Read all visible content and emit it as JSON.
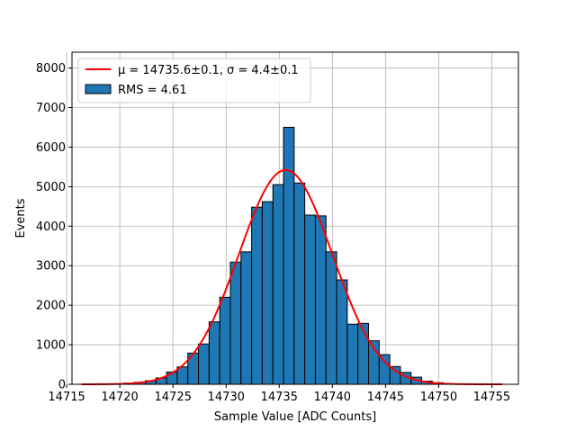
{
  "chart_data": {
    "type": "bar",
    "xlabel": "Sample Value [ADC Counts]",
    "ylabel": "Events",
    "xlim": [
      14715.5,
      14757.5
    ],
    "ylim": [
      0,
      8400
    ],
    "xticks": [
      14715,
      14720,
      14725,
      14730,
      14735,
      14740,
      14745,
      14750,
      14755
    ],
    "yticks": [
      0,
      1000,
      2000,
      3000,
      4000,
      5000,
      6000,
      7000,
      8000
    ],
    "grid": true,
    "legend_position": "top-left",
    "histogram": {
      "name": "RMS = 4.61",
      "color": "#1f77b4",
      "edge_color": "#000000",
      "bin_edges": [
        14716.4,
        14717.4,
        14718.4,
        14719.4,
        14720.4,
        14721.4,
        14722.4,
        14723.4,
        14724.4,
        14725.4,
        14726.4,
        14727.4,
        14728.4,
        14729.4,
        14730.4,
        14731.4,
        14732.4,
        14733.4,
        14734.4,
        14735.4,
        14736.4,
        14737.4,
        14738.4,
        14739.4,
        14740.4,
        14741.4,
        14742.4,
        14743.4,
        14744.4,
        14745.4,
        14746.4,
        14747.4,
        14748.4,
        14749.4,
        14750.4,
        14751.4,
        14752.4,
        14753.4,
        14754.4,
        14755.4
      ],
      "counts": [
        0,
        0,
        5,
        15,
        30,
        50,
        90,
        160,
        310,
        440,
        790,
        1020,
        1580,
        2200,
        3090,
        3350,
        4480,
        4620,
        5050,
        6500,
        5090,
        4280,
        4260,
        3350,
        2640,
        1520,
        1540,
        1100,
        750,
        450,
        300,
        180,
        80,
        40,
        15,
        5,
        0,
        0,
        0
      ]
    },
    "fit": {
      "name": "μ = 14735.6±0.1, σ = 4.4±0.1",
      "color": "#ff0000",
      "mu": 14735.6,
      "sigma": 4.4,
      "amplitude": 5420,
      "x_range": [
        14716.4,
        14756.0
      ]
    }
  }
}
